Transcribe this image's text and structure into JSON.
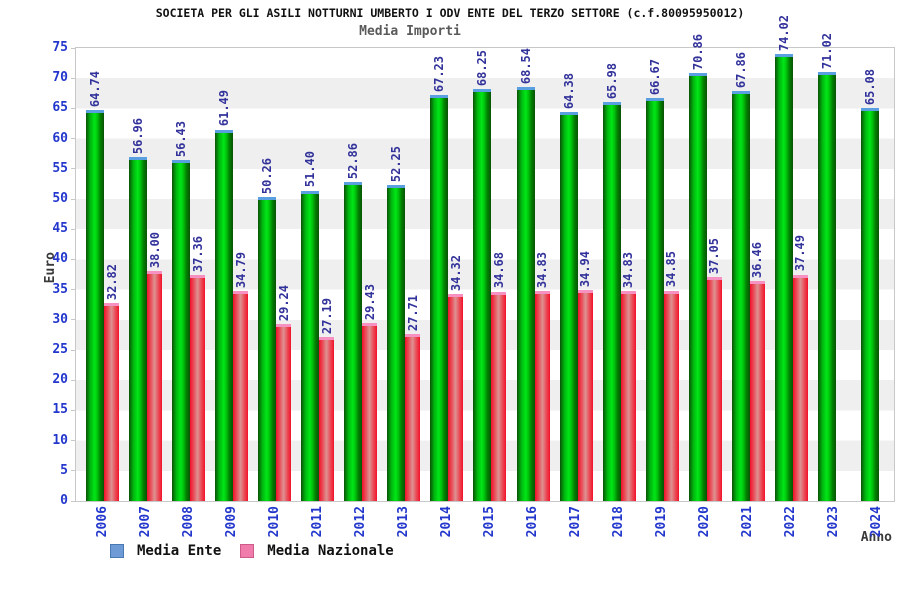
{
  "chart_data": {
    "type": "bar",
    "title": "SOCIETA PER GLI ASILI NOTTURNI UMBERTO I ODV ENTE DEL TERZO SETTORE (c.f.80095950012)",
    "subtitle": "Media Importi",
    "xlabel": "Anno",
    "ylabel": "Euro",
    "ylim": [
      0,
      75
    ],
    "ytick_step": 5,
    "grid": "alternating horizontal bands every 5 units, white / light gray",
    "legend_position": "bottom-left",
    "value_labels": "rotated 90deg, two decimals, above each bar",
    "categories": [
      "2006",
      "2007",
      "2008",
      "2009",
      "2010",
      "2011",
      "2012",
      "2013",
      "2014",
      "2015",
      "2016",
      "2017",
      "2018",
      "2019",
      "2020",
      "2021",
      "2022",
      "2023",
      "2024"
    ],
    "series": [
      {
        "name": "Media Ente",
        "values": [
          64.74,
          56.96,
          56.43,
          61.49,
          50.26,
          51.4,
          52.86,
          52.25,
          67.23,
          68.25,
          68.54,
          64.38,
          65.98,
          66.67,
          70.86,
          67.86,
          74.02,
          71.02,
          65.08
        ]
      },
      {
        "name": "Media Nazionale",
        "values": [
          32.82,
          38.0,
          37.36,
          34.79,
          29.24,
          27.19,
          29.43,
          27.71,
          34.32,
          34.68,
          34.83,
          34.94,
          34.83,
          34.85,
          37.05,
          36.46,
          37.49,
          null,
          null
        ]
      }
    ]
  },
  "colors": {
    "green_bar_edge": "#0a5206",
    "green_bar_mid": "#00e617",
    "green_bar_cap": "#5a9fe0",
    "red_bar_edge": "#f2112b",
    "red_bar_mid": "#dc9292",
    "red_bar_cap": "#f791c1",
    "legend_ente_fill": "#6e9bd6",
    "legend_ente_border": "#4979b4",
    "legend_nazionale_fill": "#ef7cab",
    "legend_nazionale_border": "#cf5a8a",
    "tick_label": "#2337cd",
    "value_label": "#32329b",
    "axis_title": "#3a3a3a",
    "subtitle": "#5a5a5a",
    "plot_band": "#efefef",
    "plot_border": "#c8c8c8"
  }
}
